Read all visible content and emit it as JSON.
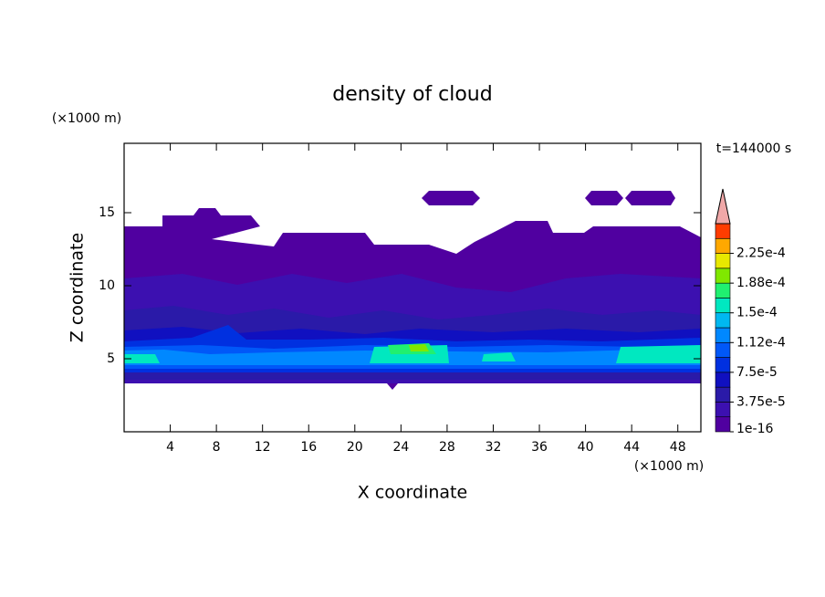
{
  "chart_data": {
    "type": "contour",
    "title": "density of cloud",
    "x_label": "X coordinate",
    "y_label": "Z coordinate",
    "x_unit": "(×1000 m)",
    "y_unit": "(×1000 m)",
    "annotation": "t=144000 s",
    "xlim": [
      0,
      50
    ],
    "ylim": [
      0,
      19.75
    ],
    "xticks": [
      4,
      8,
      12,
      16,
      20,
      24,
      28,
      32,
      36,
      40,
      44,
      48
    ],
    "yticks": [
      5,
      10,
      15
    ],
    "colorbar": {
      "clim": [
        0,
        0.0002625
      ],
      "colors": [
        "#5000a0",
        "#3c10b0",
        "#2a1aa8",
        "#1010c0",
        "#0030e0",
        "#0058f8",
        "#0088ff",
        "#00b8f0",
        "#00e8c0",
        "#20f070",
        "#80e800",
        "#e8e800",
        "#ffa800",
        "#ff3c00"
      ],
      "extend_color": "#f0a8a8",
      "ticks": [
        1e-16,
        {
          "value": 3.75e-05,
          "label": "3.75e-5"
        },
        {
          "value": 7.5e-05,
          "label": "7.5e-5"
        },
        {
          "value": 0.0001125,
          "label": "1.12e-4"
        },
        {
          "value": 0.00015,
          "label": "1.5e-4"
        },
        {
          "value": 0.0001875,
          "label": "1.88e-4"
        },
        {
          "value": 0.000225,
          "label": "2.25e-4"
        }
      ]
    }
  }
}
